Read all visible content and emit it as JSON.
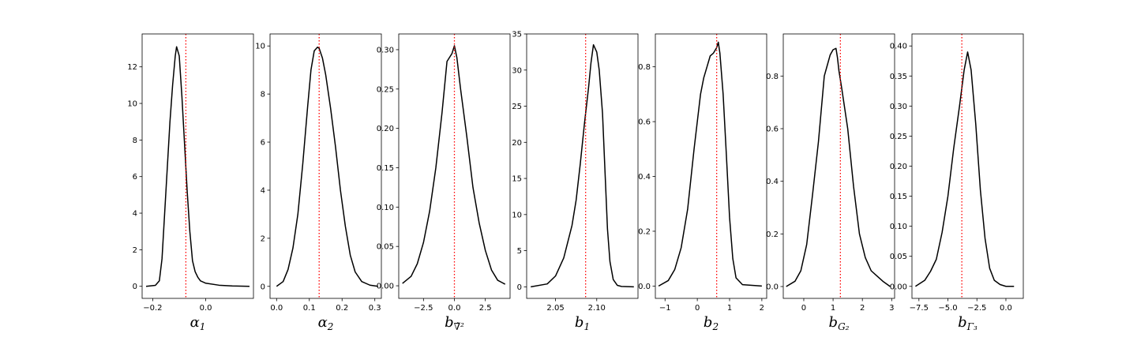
{
  "figure": {
    "background": "#ffffff",
    "curve_color": "#000000",
    "truth_color": "#ff0000"
  },
  "chart_data": [
    {
      "type": "line",
      "param": "alpha_1",
      "xlabel": "α",
      "xlabel_sub": "1",
      "xlim": [
        -0.24,
        0.18
      ],
      "ylim": [
        -0.66,
        13.8
      ],
      "xticks": [
        -0.2,
        0.0
      ],
      "xticklabels": [
        "−0.2",
        "0.0"
      ],
      "yticks": [
        0,
        2,
        4,
        6,
        8,
        10,
        12
      ],
      "yticklabels": [
        "0",
        "2",
        "4",
        "6",
        "8",
        "10",
        "12"
      ],
      "truth": -0.075,
      "x": [
        -0.225,
        -0.19,
        -0.175,
        -0.165,
        -0.155,
        -0.145,
        -0.135,
        -0.125,
        -0.115,
        -0.11,
        -0.1,
        -0.09,
        -0.08,
        -0.07,
        -0.06,
        -0.05,
        -0.04,
        -0.03,
        -0.02,
        0.0,
        0.05,
        0.1,
        0.165
      ],
      "y": [
        0.0,
        0.05,
        0.3,
        1.5,
        4.0,
        6.5,
        9.0,
        11.0,
        12.6,
        13.1,
        12.6,
        10.4,
        7.8,
        5.2,
        3.0,
        1.4,
        0.8,
        0.5,
        0.3,
        0.17,
        0.06,
        0.02,
        0.0
      ]
    },
    {
      "type": "line",
      "param": "alpha_2",
      "xlabel": "α",
      "xlabel_sub": "2",
      "xlim": [
        -0.02,
        0.32
      ],
      "ylim": [
        -0.5,
        10.5
      ],
      "xticks": [
        0.0,
        0.1,
        0.2,
        0.3
      ],
      "xticklabels": [
        "0.0",
        "0.1",
        "0.2",
        "0.3"
      ],
      "yticks": [
        0,
        2,
        4,
        6,
        8,
        10
      ],
      "yticklabels": [
        "0",
        "2",
        "4",
        "6",
        "8",
        "10"
      ],
      "truth": 0.13,
      "x": [
        0.0,
        0.02,
        0.035,
        0.05,
        0.065,
        0.08,
        0.095,
        0.105,
        0.115,
        0.125,
        0.13,
        0.14,
        0.15,
        0.165,
        0.18,
        0.195,
        0.21,
        0.225,
        0.24,
        0.26,
        0.285,
        0.31
      ],
      "y": [
        0.0,
        0.2,
        0.7,
        1.6,
        3.0,
        5.1,
        7.5,
        9.0,
        9.8,
        9.95,
        9.9,
        9.5,
        8.8,
        7.4,
        5.8,
        4.0,
        2.5,
        1.3,
        0.6,
        0.2,
        0.05,
        0.0
      ]
    },
    {
      "type": "line",
      "param": "b_nabla2",
      "xlabel": "b",
      "xlabel_sub": "∇̃²",
      "xlim": [
        -4.5,
        4.5
      ],
      "ylim": [
        -0.016,
        0.32
      ],
      "xticks": [
        -2.5,
        0.0,
        2.5
      ],
      "xticklabels": [
        "−2.5",
        "0.0",
        "2.5"
      ],
      "yticks": [
        0.0,
        0.05,
        0.1,
        0.15,
        0.2,
        0.25,
        0.3
      ],
      "yticklabels": [
        "0.00",
        "0.05",
        "0.10",
        "0.15",
        "0.20",
        "0.25",
        "0.30"
      ],
      "truth": 0.0,
      "x": [
        -4.2,
        -3.5,
        -3.0,
        -2.5,
        -2.0,
        -1.5,
        -1.0,
        -0.6,
        -0.4,
        -0.2,
        0.0,
        0.2,
        0.5,
        1.0,
        1.5,
        2.0,
        2.5,
        3.0,
        3.5,
        4.1
      ],
      "y": [
        0.003,
        0.012,
        0.028,
        0.055,
        0.095,
        0.15,
        0.22,
        0.285,
        0.29,
        0.295,
        0.305,
        0.29,
        0.25,
        0.19,
        0.125,
        0.08,
        0.045,
        0.02,
        0.007,
        0.002
      ]
    },
    {
      "type": "line",
      "param": "b_1",
      "xlabel": "b",
      "xlabel_sub": "1",
      "xlim": [
        2.015,
        2.15
      ],
      "ylim": [
        -1.6,
        35.0
      ],
      "xticks": [
        2.05,
        2.1
      ],
      "xticklabels": [
        "2.05",
        "2.10"
      ],
      "yticks": [
        0,
        5,
        10,
        15,
        20,
        25,
        30,
        35
      ],
      "yticklabels": [
        "0",
        "5",
        "10",
        "15",
        "20",
        "25",
        "30",
        "35"
      ],
      "truth": 2.0865,
      "x": [
        2.02,
        2.04,
        2.05,
        2.06,
        2.07,
        2.075,
        2.08,
        2.085,
        2.09,
        2.093,
        2.096,
        2.1,
        2.103,
        2.107,
        2.11,
        2.113,
        2.116,
        2.12,
        2.125,
        2.13,
        2.145
      ],
      "y": [
        0.0,
        0.4,
        1.5,
        4.0,
        8.5,
        12.0,
        17.0,
        22.5,
        27.5,
        31.0,
        33.5,
        32.5,
        30.0,
        24.0,
        16.0,
        8.0,
        3.5,
        1.0,
        0.2,
        0.05,
        0.0
      ]
    },
    {
      "type": "line",
      "param": "b_2",
      "xlabel": "b",
      "xlabel_sub": "2",
      "xlim": [
        -1.3,
        2.15
      ],
      "ylim": [
        -0.045,
        0.92
      ],
      "xticks": [
        -1,
        0,
        1,
        2
      ],
      "xticklabels": [
        "−1",
        "0",
        "1",
        "2"
      ],
      "yticks": [
        0.0,
        0.2,
        0.4,
        0.6,
        0.8
      ],
      "yticklabels": [
        "0.0",
        "0.2",
        "0.4",
        "0.6",
        "0.8"
      ],
      "truth": 0.6,
      "x": [
        -1.2,
        -0.9,
        -0.7,
        -0.5,
        -0.3,
        -0.1,
        0.0,
        0.1,
        0.2,
        0.3,
        0.4,
        0.5,
        0.6,
        0.65,
        0.7,
        0.8,
        0.9,
        1.0,
        1.1,
        1.2,
        1.4,
        2.0
      ],
      "y": [
        0.0,
        0.02,
        0.06,
        0.14,
        0.28,
        0.5,
        0.6,
        0.7,
        0.76,
        0.8,
        0.84,
        0.85,
        0.87,
        0.89,
        0.85,
        0.7,
        0.48,
        0.25,
        0.1,
        0.03,
        0.005,
        0.0
      ]
    },
    {
      "type": "line",
      "param": "b_G2",
      "xlabel": "b",
      "xlabel_sub": "G₂",
      "xlim": [
        -0.7,
        3.1
      ],
      "ylim": [
        -0.045,
        0.96
      ],
      "xticks": [
        0,
        1,
        2,
        3
      ],
      "xticklabels": [
        "0",
        "1",
        "2",
        "3"
      ],
      "yticks": [
        0.0,
        0.2,
        0.4,
        0.6,
        0.8
      ],
      "yticklabels": [
        "0.0",
        "0.2",
        "0.4",
        "0.6",
        "0.8"
      ],
      "truth": 1.25,
      "x": [
        -0.6,
        -0.3,
        -0.1,
        0.1,
        0.3,
        0.5,
        0.7,
        0.8,
        0.9,
        1.0,
        1.1,
        1.15,
        1.2,
        1.3,
        1.5,
        1.7,
        1.9,
        2.1,
        2.3,
        2.5,
        2.7,
        2.95
      ],
      "y": [
        0.0,
        0.02,
        0.06,
        0.16,
        0.35,
        0.55,
        0.8,
        0.84,
        0.88,
        0.9,
        0.905,
        0.87,
        0.82,
        0.75,
        0.6,
        0.38,
        0.2,
        0.11,
        0.06,
        0.04,
        0.02,
        0.0
      ]
    },
    {
      "type": "line",
      "param": "b_Gamma3",
      "xlabel": "b",
      "xlabel_sub": "Γ₃",
      "xlim": [
        -8.1,
        1.5
      ],
      "ylim": [
        -0.02,
        0.42
      ],
      "xticks": [
        -7.5,
        -5.0,
        -2.5,
        0.0
      ],
      "xticklabels": [
        "−7.5",
        "−5.0",
        "−2.5",
        "0.0"
      ],
      "yticks": [
        0.0,
        0.05,
        0.1,
        0.15,
        0.2,
        0.25,
        0.3,
        0.35,
        0.4
      ],
      "yticklabels": [
        "0.00",
        "0.05",
        "0.10",
        "0.15",
        "0.20",
        "0.25",
        "0.30",
        "0.35",
        "0.40"
      ],
      "truth": -3.8,
      "x": [
        -7.8,
        -7.0,
        -6.5,
        -6.0,
        -5.5,
        -5.0,
        -4.5,
        -4.0,
        -3.6,
        -3.3,
        -3.0,
        -2.6,
        -2.2,
        -1.8,
        -1.4,
        -1.0,
        -0.5,
        0.0,
        0.7
      ],
      "y": [
        0.0,
        0.01,
        0.025,
        0.045,
        0.09,
        0.15,
        0.23,
        0.3,
        0.36,
        0.39,
        0.36,
        0.27,
        0.16,
        0.08,
        0.03,
        0.01,
        0.003,
        0.0,
        0.0
      ]
    }
  ]
}
